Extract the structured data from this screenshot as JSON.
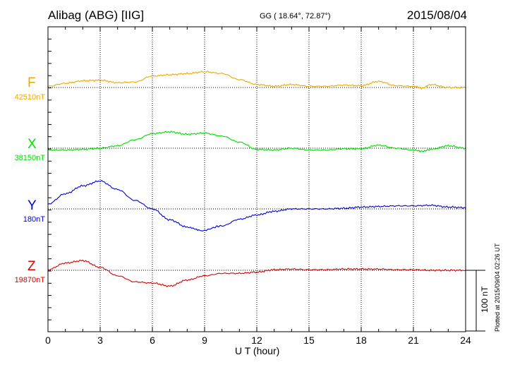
{
  "header": {
    "station": "Alibag (ABG)  [IIG]",
    "coords": "GG ( 18.64°,  72.87°)",
    "date": "2015/08/04"
  },
  "footer": {
    "plotted": "Plotted at 2015/09/04 02:26 UT"
  },
  "scale": {
    "label": "100 nT",
    "value_nT": 100
  },
  "chart_data": {
    "type": "line",
    "xlabel": "U T (hour)",
    "xlim": [
      0,
      24
    ],
    "xticks": [
      "0",
      "3",
      "6",
      "9",
      "12",
      "15",
      "18",
      "21",
      "24"
    ],
    "grid": true,
    "series": [
      {
        "name": "F",
        "baseline": "42510nT",
        "color": "#f0a800",
        "x": [
          0,
          1,
          2,
          3,
          4,
          5,
          6,
          7,
          8,
          9,
          10,
          11,
          12,
          13,
          14,
          15,
          16,
          17,
          18,
          19,
          20,
          21,
          21.5,
          22,
          23,
          24
        ],
        "y": [
          2,
          7,
          11,
          12,
          8,
          9,
          19,
          21,
          23,
          26,
          23,
          13,
          5,
          2,
          5,
          2,
          2,
          4,
          3,
          10,
          3,
          2,
          -1,
          5,
          0,
          0
        ]
      },
      {
        "name": "X",
        "baseline": "38150nT",
        "color": "#00dd00",
        "x": [
          0,
          1,
          2,
          3,
          4,
          5,
          6,
          7,
          8,
          9,
          10,
          11,
          12,
          13,
          14,
          15,
          16,
          17,
          18,
          19,
          20,
          21,
          21.5,
          22,
          23,
          24
        ],
        "y": [
          -3,
          -3,
          -2,
          0,
          4,
          14,
          24,
          27,
          23,
          25,
          20,
          10,
          -2,
          -3,
          0,
          -3,
          -3,
          -1,
          -1,
          5,
          0,
          -3,
          -5,
          -2,
          4,
          0
        ]
      },
      {
        "name": "Y",
        "baseline": "180nT",
        "color": "#0000dd",
        "x": [
          0,
          1,
          2,
          3,
          4,
          5,
          6,
          7,
          8,
          8.8,
          10,
          11,
          12,
          13,
          14,
          15,
          16,
          17,
          18,
          19,
          20,
          21,
          22,
          23,
          24
        ],
        "y": [
          8,
          25,
          38,
          46,
          32,
          14,
          0,
          -18,
          -30,
          -36,
          -28,
          -17,
          -10,
          -4,
          0,
          0,
          0,
          1,
          3,
          4,
          5,
          5,
          6,
          3,
          2
        ]
      },
      {
        "name": "Z",
        "baseline": "19870nT",
        "color": "#dd0000",
        "x": [
          0,
          1,
          2,
          3,
          4,
          5,
          6,
          7,
          8,
          9,
          10,
          11,
          12,
          13,
          14,
          15,
          16,
          17,
          18,
          19,
          20,
          21,
          22,
          23,
          24
        ],
        "y": [
          1,
          12,
          16,
          5,
          -9,
          -19,
          -21,
          -26,
          -16,
          -9,
          -5,
          -5,
          -3,
          1,
          2,
          1,
          1,
          2,
          2,
          2,
          1,
          1,
          0,
          0,
          0
        ]
      }
    ]
  }
}
